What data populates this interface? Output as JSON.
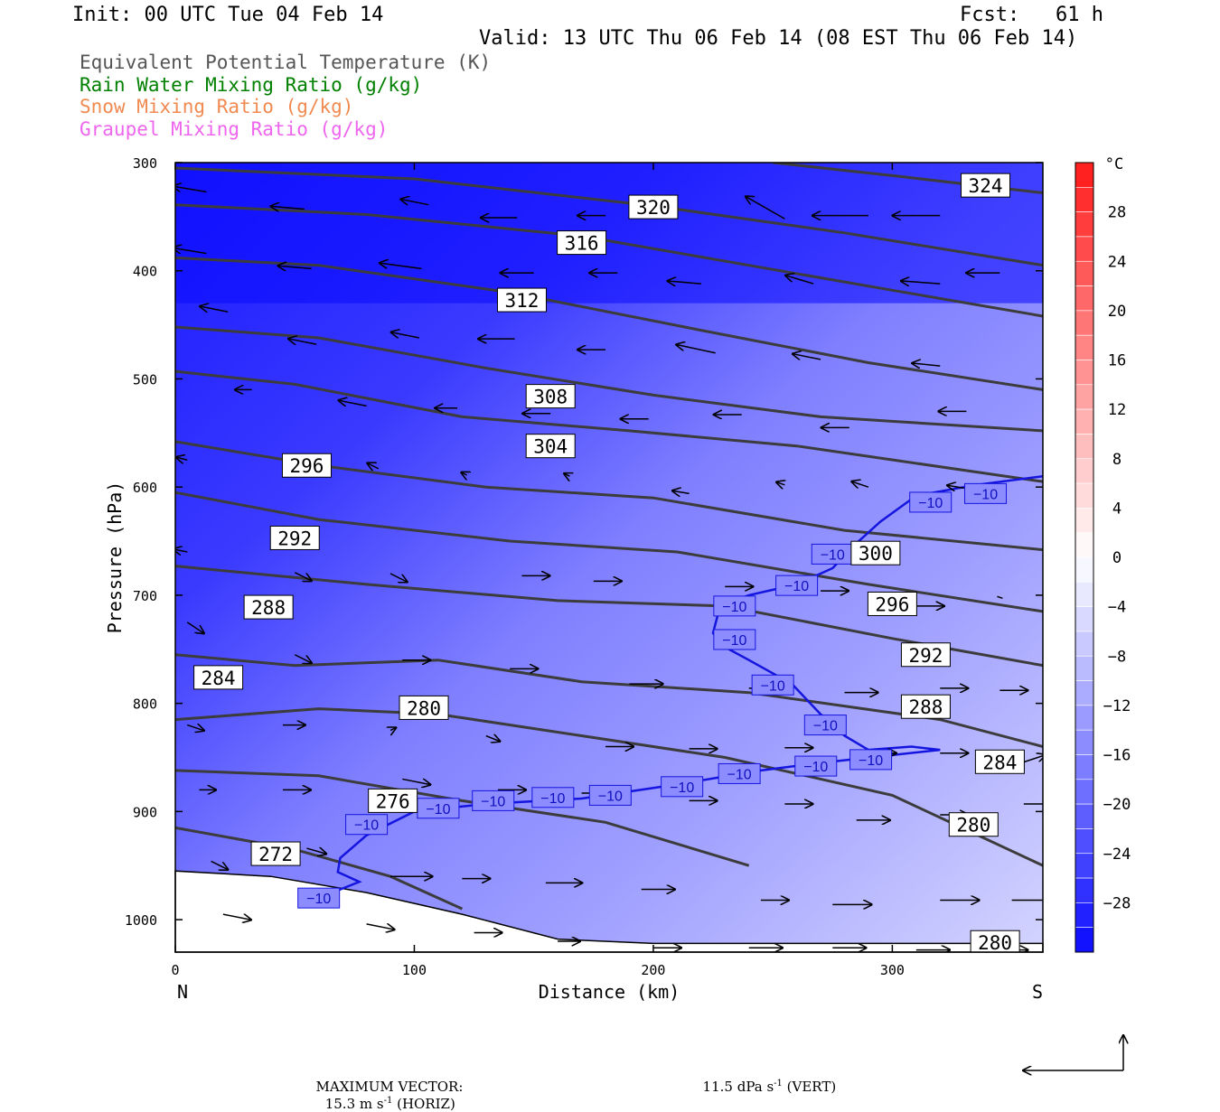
{
  "header": {
    "init": "Init: 00 UTC Tue 04 Feb 14",
    "fcst": "Fcst:   61 h",
    "valid": "Valid: 13 UTC Thu 06 Feb 14 (08 EST Thu 06 Feb 14)"
  },
  "legend": [
    {
      "label": "Equivalent Potential Temperature (K)",
      "color": "#555555"
    },
    {
      "label": "Rain Water Mixing Ratio (g/kg)",
      "color": "#008000"
    },
    {
      "label": "Snow Mixing Ratio (g/kg)",
      "color": "#f08a50"
    },
    {
      "label": "Graupel Mixing Ratio (g/kg)",
      "color": "#ee66ee"
    }
  ],
  "chart_data": {
    "type": "contour-cross-section",
    "xlabel": "Distance (km)",
    "ylabel": "Pressure (hPa)",
    "x_ticks": [
      0,
      100,
      200,
      300
    ],
    "y_ticks": [
      300,
      400,
      500,
      600,
      700,
      800,
      900,
      1000
    ],
    "xlim": [
      0,
      363
    ],
    "ylim": [
      300,
      1030
    ],
    "y_reversed": true,
    "x_end_labels": {
      "left": "N",
      "right": "S"
    },
    "colorbar": {
      "unit": "°C",
      "ticks": [
        28,
        24,
        20,
        16,
        12,
        8,
        4,
        0,
        -4,
        -8,
        -12,
        -16,
        -20,
        -24,
        -28
      ],
      "range": [
        -32,
        32
      ]
    },
    "theta_e_contours": [
      {
        "label": "324",
        "points": [
          [
            250,
            300
          ],
          [
            300,
            312
          ],
          [
            363,
            328
          ]
        ]
      },
      {
        "label": "320",
        "points": [
          [
            0,
            305
          ],
          [
            100,
            315
          ],
          [
            200,
            340
          ],
          [
            280,
            365
          ],
          [
            363,
            395
          ]
        ]
      },
      {
        "label": "316",
        "points": [
          [
            0,
            339
          ],
          [
            80,
            348
          ],
          [
            170,
            368
          ],
          [
            240,
            395
          ],
          [
            300,
            418
          ],
          [
            363,
            442
          ]
        ]
      },
      {
        "label": "312",
        "points": [
          [
            0,
            388
          ],
          [
            60,
            395
          ],
          [
            140,
            420
          ],
          [
            220,
            455
          ],
          [
            290,
            485
          ],
          [
            363,
            510
          ]
        ]
      },
      {
        "label": "308",
        "points": [
          [
            0,
            452
          ],
          [
            60,
            462
          ],
          [
            130,
            490
          ],
          [
            200,
            515
          ],
          [
            270,
            535
          ],
          [
            363,
            548
          ]
        ]
      },
      {
        "label": "304",
        "points": [
          [
            0,
            493
          ],
          [
            50,
            505
          ],
          [
            120,
            535
          ],
          [
            190,
            548
          ],
          [
            260,
            562
          ],
          [
            363,
            595
          ]
        ]
      },
      {
        "label": "296",
        "points": [
          [
            0,
            558
          ],
          [
            60,
            580
          ],
          [
            130,
            600
          ],
          [
            200,
            610
          ],
          [
            280,
            640
          ],
          [
            363,
            658
          ]
        ]
      },
      {
        "label": "292",
        "points": [
          [
            0,
            605
          ],
          [
            60,
            630
          ],
          [
            140,
            650
          ],
          [
            210,
            660
          ],
          [
            290,
            690
          ],
          [
            363,
            715
          ]
        ]
      },
      {
        "label": "288",
        "points": [
          [
            0,
            673
          ],
          [
            80,
            690
          ],
          [
            160,
            705
          ],
          [
            230,
            710
          ],
          [
            300,
            740
          ],
          [
            363,
            765
          ]
        ]
      },
      {
        "label": "284",
        "points": [
          [
            0,
            755
          ],
          [
            50,
            765
          ],
          [
            110,
            760
          ],
          [
            170,
            780
          ],
          [
            240,
            790
          ],
          [
            320,
            815
          ],
          [
            363,
            840
          ]
        ]
      },
      {
        "label": "280",
        "points": [
          [
            0,
            815
          ],
          [
            60,
            805
          ],
          [
            110,
            810
          ],
          [
            170,
            830
          ],
          [
            230,
            850
          ],
          [
            300,
            885
          ],
          [
            363,
            950
          ]
        ]
      },
      {
        "label": "276",
        "points": [
          [
            0,
            862
          ],
          [
            60,
            867
          ],
          [
            120,
            890
          ],
          [
            180,
            910
          ],
          [
            240,
            950
          ]
        ]
      },
      {
        "label": "272",
        "points": [
          [
            0,
            915
          ],
          [
            50,
            935
          ],
          [
            90,
            960
          ],
          [
            120,
            990
          ]
        ]
      }
    ],
    "theta_e_label_positions": [
      {
        "label": "324",
        "x": 339,
        "p": 321
      },
      {
        "label": "320",
        "x": 200,
        "p": 341
      },
      {
        "label": "316",
        "x": 170,
        "p": 374
      },
      {
        "label": "312",
        "x": 145,
        "p": 427
      },
      {
        "label": "308",
        "x": 157,
        "p": 516
      },
      {
        "label": "304",
        "x": 157,
        "p": 562
      },
      {
        "label": "296",
        "x": 55,
        "p": 580
      },
      {
        "label": "300",
        "x": 293,
        "p": 661
      },
      {
        "label": "292",
        "x": 50,
        "p": 647
      },
      {
        "label": "296",
        "x": 300,
        "p": 708
      },
      {
        "label": "288",
        "x": 39,
        "p": 711
      },
      {
        "label": "292",
        "x": 314,
        "p": 755
      },
      {
        "label": "284",
        "x": 18,
        "p": 776
      },
      {
        "label": "288",
        "x": 314,
        "p": 803
      },
      {
        "label": "280",
        "x": 104,
        "p": 804
      },
      {
        "label": "284",
        "x": 345,
        "p": 854
      },
      {
        "label": "276",
        "x": 91,
        "p": 890
      },
      {
        "label": "280",
        "x": 334,
        "p": 912
      },
      {
        "label": "272",
        "x": 42,
        "p": 939
      },
      {
        "label": "280",
        "x": 343,
        "p": 1021
      }
    ],
    "isotherm_minus10": {
      "label": "−10",
      "points": [
        [
          60,
          980
        ],
        [
          77,
          965
        ],
        [
          68,
          956
        ],
        [
          69,
          943
        ],
        [
          80,
          922
        ],
        [
          100,
          900
        ],
        [
          130,
          893
        ],
        [
          170,
          888
        ],
        [
          210,
          875
        ],
        [
          245,
          862
        ],
        [
          270,
          855
        ],
        [
          320,
          843
        ],
        [
          308,
          840
        ],
        [
          290,
          843
        ],
        [
          280,
          830
        ],
        [
          270,
          810
        ],
        [
          258,
          782
        ],
        [
          240,
          760
        ],
        [
          230,
          748
        ],
        [
          225,
          735
        ],
        [
          227,
          718
        ],
        [
          230,
          708
        ],
        [
          240,
          700
        ],
        [
          260,
          690
        ],
        [
          275,
          675
        ],
        [
          285,
          652
        ],
        [
          295,
          632
        ],
        [
          310,
          608
        ],
        [
          335,
          598
        ],
        [
          363,
          590
        ]
      ]
    },
    "isotherm_label_positions": [
      {
        "x": 60,
        "p": 980
      },
      {
        "x": 80,
        "p": 912
      },
      {
        "x": 110,
        "p": 897
      },
      {
        "x": 133,
        "p": 890
      },
      {
        "x": 158,
        "p": 887
      },
      {
        "x": 182,
        "p": 885
      },
      {
        "x": 212,
        "p": 877
      },
      {
        "x": 236,
        "p": 865
      },
      {
        "x": 268,
        "p": 858
      },
      {
        "x": 291,
        "p": 852
      },
      {
        "x": 272,
        "p": 820
      },
      {
        "x": 250,
        "p": 783
      },
      {
        "x": 234,
        "p": 741
      },
      {
        "x": 234,
        "p": 710
      },
      {
        "x": 260,
        "p": 691
      },
      {
        "x": 275,
        "p": 662
      },
      {
        "x": 316,
        "p": 614
      },
      {
        "x": 339,
        "p": 606
      }
    ],
    "wind_vectors": [
      [
        13,
        327,
        -12,
        -2
      ],
      [
        54,
        343,
        -12,
        -1
      ],
      [
        106,
        339,
        -10,
        -2
      ],
      [
        143,
        351,
        -13,
        0
      ],
      [
        180,
        349,
        -10,
        0
      ],
      [
        255,
        352,
        -14,
        -8
      ],
      [
        290,
        349,
        -20,
        0
      ],
      [
        320,
        349,
        -17,
        0
      ],
      [
        13,
        384,
        -12,
        -2
      ],
      [
        57,
        398,
        -12,
        -1
      ],
      [
        103,
        398,
        -15,
        -2
      ],
      [
        150,
        402,
        -12,
        0
      ],
      [
        185,
        402,
        -10,
        0
      ],
      [
        220,
        412,
        -12,
        -1
      ],
      [
        267,
        412,
        -10,
        -3
      ],
      [
        320,
        412,
        -14,
        -1
      ],
      [
        345,
        402,
        -12,
        0
      ],
      [
        22,
        438,
        -10,
        -2
      ],
      [
        59,
        468,
        -10,
        -2
      ],
      [
        102,
        462,
        -10,
        -2
      ],
      [
        142,
        463,
        -13,
        0
      ],
      [
        180,
        473,
        -10,
        0
      ],
      [
        226,
        476,
        -14,
        -3
      ],
      [
        270,
        482,
        -10,
        -2
      ],
      [
        320,
        488,
        -10,
        -1
      ],
      [
        32,
        510,
        -6,
        0
      ],
      [
        80,
        525,
        -10,
        -2
      ],
      [
        118,
        527,
        -8,
        0
      ],
      [
        157,
        532,
        -10,
        0
      ],
      [
        198,
        537,
        -10,
        0
      ],
      [
        237,
        533,
        -10,
        0
      ],
      [
        282,
        545,
        -10,
        0
      ],
      [
        331,
        530,
        -10,
        0
      ],
      [
        5,
        575,
        -4,
        -1
      ],
      [
        85,
        583,
        -4,
        -2
      ],
      [
        122,
        589,
        -2,
        -1
      ],
      [
        165,
        590,
        -2,
        -1
      ],
      [
        215,
        606,
        -6,
        -1
      ],
      [
        255,
        598,
        -3,
        -1
      ],
      [
        290,
        600,
        -6,
        -2
      ],
      [
        330,
        601,
        -6,
        -1
      ],
      [
        5,
        660,
        -5,
        -1
      ],
      [
        50,
        679,
        6,
        3
      ],
      [
        90,
        680,
        6,
        3
      ],
      [
        145,
        682,
        10,
        0
      ],
      [
        175,
        687,
        10,
        0
      ],
      [
        230,
        692,
        10,
        0
      ],
      [
        270,
        696,
        10,
        0
      ],
      [
        310,
        710,
        10,
        0
      ],
      [
        345,
        702,
        0,
        0
      ],
      [
        5,
        725,
        6,
        4
      ],
      [
        50,
        755,
        6,
        3
      ],
      [
        95,
        760,
        10,
        0
      ],
      [
        140,
        768,
        10,
        0
      ],
      [
        190,
        782,
        12,
        0
      ],
      [
        240,
        786,
        12,
        0
      ],
      [
        280,
        790,
        12,
        0
      ],
      [
        320,
        786,
        10,
        0
      ],
      [
        345,
        788,
        10,
        0
      ],
      [
        5,
        820,
        6,
        2
      ],
      [
        45,
        820,
        8,
        0
      ],
      [
        90,
        825,
        2,
        -1
      ],
      [
        130,
        830,
        5,
        2
      ],
      [
        180,
        840,
        10,
        0
      ],
      [
        215,
        842,
        10,
        0
      ],
      [
        255,
        841,
        10,
        0
      ],
      [
        290,
        846,
        10,
        0
      ],
      [
        320,
        846,
        10,
        0
      ],
      [
        350,
        858,
        12,
        -4
      ],
      [
        10,
        880,
        6,
        0
      ],
      [
        45,
        880,
        10,
        0
      ],
      [
        95,
        870,
        10,
        2
      ],
      [
        135,
        880,
        10,
        0
      ],
      [
        170,
        883,
        10,
        0
      ],
      [
        215,
        890,
        10,
        0
      ],
      [
        255,
        893,
        10,
        0
      ],
      [
        285,
        908,
        12,
        0
      ],
      [
        320,
        903,
        10,
        0
      ],
      [
        355,
        893,
        12,
        0
      ],
      [
        15,
        946,
        6,
        3
      ],
      [
        55,
        934,
        7,
        2
      ],
      [
        90,
        960,
        15,
        0
      ],
      [
        120,
        962,
        10,
        0
      ],
      [
        155,
        966,
        13,
        0
      ],
      [
        195,
        972,
        12,
        0
      ],
      [
        245,
        982,
        10,
        0
      ],
      [
        275,
        986,
        14,
        0
      ],
      [
        320,
        982,
        14,
        0
      ],
      [
        350,
        982,
        14,
        0
      ],
      [
        20,
        995,
        10,
        2
      ],
      [
        80,
        1004,
        10,
        2
      ],
      [
        125,
        1012,
        10,
        0
      ],
      [
        160,
        1020,
        8,
        0
      ],
      [
        200,
        1026,
        10,
        0
      ],
      [
        240,
        1026,
        12,
        0
      ],
      [
        275,
        1026,
        12,
        0
      ],
      [
        310,
        1028,
        12,
        0
      ],
      [
        345,
        1028,
        10,
        0
      ]
    ]
  },
  "footer": {
    "maxvec_label": "MAXIMUM VECTOR:",
    "horiz_value": "15.3 m s",
    "horiz_exp": "-1",
    "horiz_tag": " (HORIZ)",
    "vert_value": "11.5 dPa s",
    "vert_exp": "-1",
    "vert_tag": " (VERT)"
  }
}
